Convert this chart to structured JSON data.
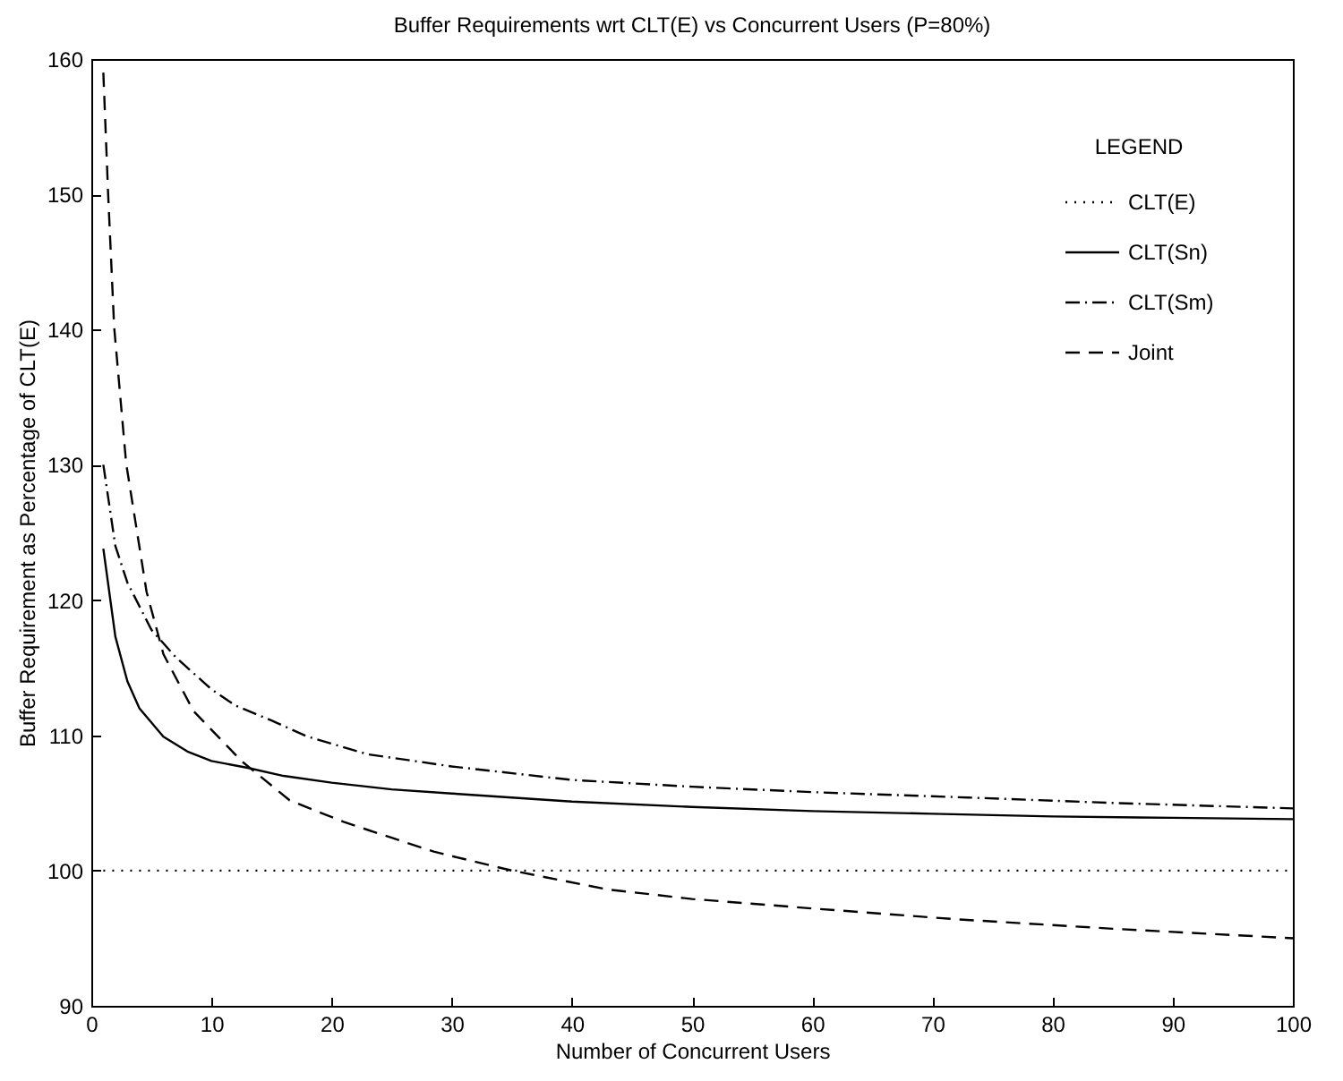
{
  "chart_data": {
    "type": "line",
    "title": "Buffer Requirements wrt CLT(E) vs Concurrent Users (P=80%)",
    "xlabel": "Number of Concurrent Users",
    "ylabel": "Buffer Requirement as Percentage of CLT(E)",
    "legend_title": "LEGEND",
    "legend": "top right",
    "grid": false,
    "marker": "none",
    "xlim": [
      0,
      100
    ],
    "xticks": [
      0,
      10,
      20,
      30,
      40,
      50,
      60,
      70,
      80,
      90,
      100
    ],
    "ylim": [
      90,
      160
    ],
    "yticks": [
      90,
      100,
      110,
      120,
      130,
      140,
      150,
      160
    ],
    "series": [
      {
        "name": "CLT(E)",
        "color": "#000000",
        "line_style": "dotted",
        "x": [
          1,
          100
        ],
        "values": [
          100,
          100
        ]
      },
      {
        "name": "CLT(Sn)",
        "color": "#000000",
        "line_style": "solid",
        "x": [
          1,
          2,
          3,
          4,
          6,
          8,
          10,
          13,
          16,
          20,
          25,
          30,
          40,
          50,
          60,
          70,
          80,
          90,
          100
        ],
        "values": [
          123.8,
          117.3,
          114,
          112,
          109.9,
          108.8,
          108.1,
          107.6,
          107,
          106.5,
          106,
          105.7,
          105.1,
          104.7,
          104.4,
          104.2,
          104,
          103.9,
          103.8
        ]
      },
      {
        "name": "CLT(Sm)",
        "color": "#000000",
        "line_style": "dashdot",
        "x": [
          1,
          2,
          3,
          5,
          7,
          10,
          12,
          15,
          18,
          23,
          30,
          40,
          50,
          60,
          73,
          85,
          100
        ],
        "values": [
          130,
          124,
          121.3,
          117.8,
          115.8,
          113.4,
          112.2,
          111.1,
          109.9,
          108.6,
          107.7,
          106.7,
          106.2,
          105.8,
          105.4,
          105,
          104.6
        ]
      },
      {
        "name": "Joint",
        "color": "#000000",
        "line_style": "dashed",
        "x": [
          1,
          1.4,
          1.9,
          2.9,
          4.6,
          6,
          8.5,
          12.5,
          16.5,
          21,
          28.5,
          35,
          43,
          50,
          60,
          72,
          85,
          100
        ],
        "values": [
          159,
          150,
          140.2,
          130.1,
          120.6,
          116,
          111.8,
          108.1,
          105.2,
          103.6,
          101.4,
          100,
          98.6,
          97.9,
          97.2,
          96.4,
          95.7,
          95
        ]
      }
    ]
  }
}
